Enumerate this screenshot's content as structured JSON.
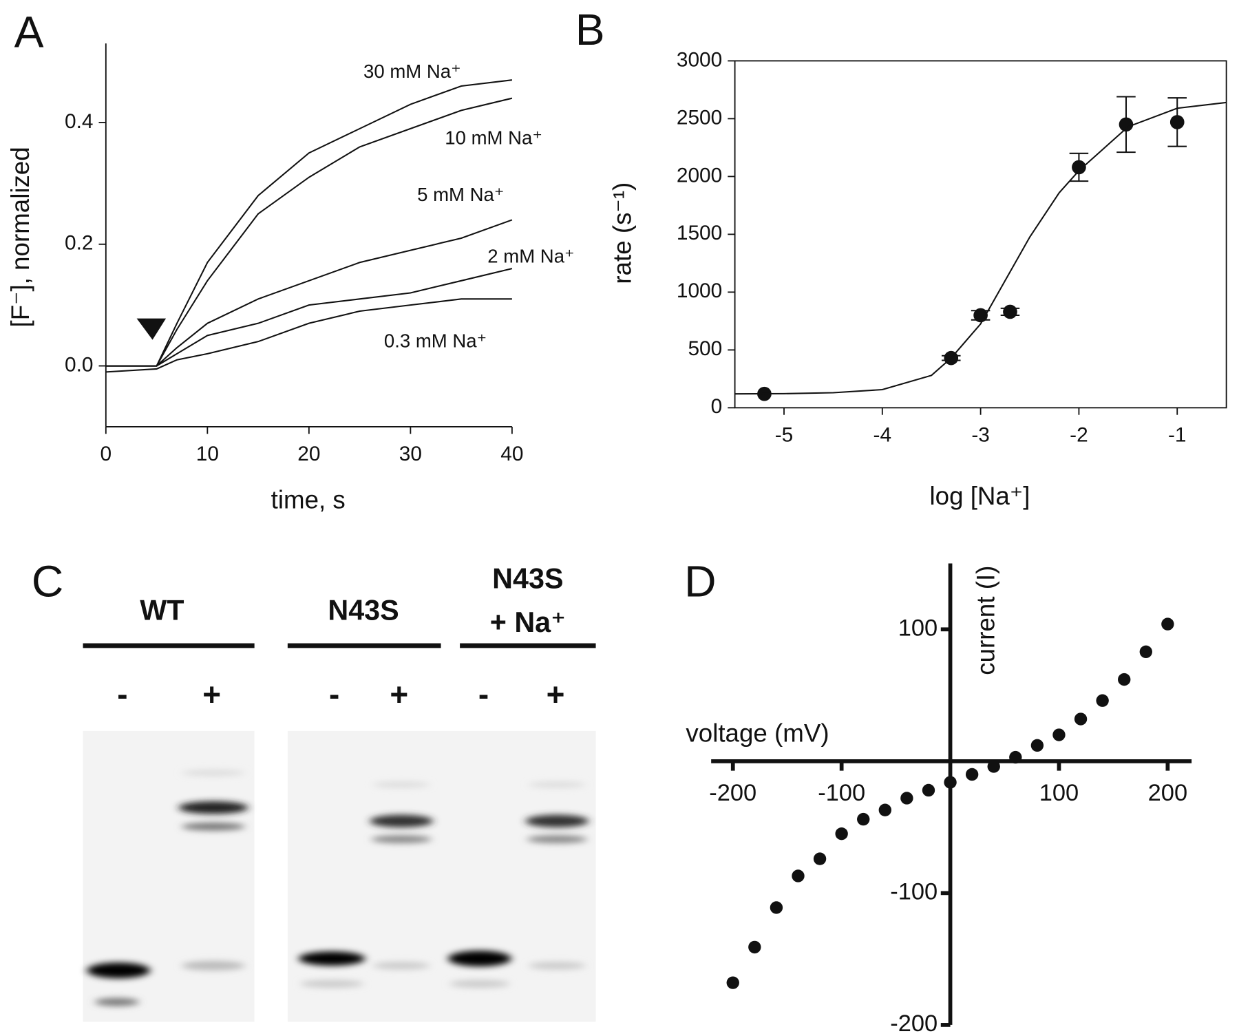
{
  "chart_data": [
    {
      "type": "line",
      "panel": "A",
      "axes": "left-bottom",
      "x_label": "time, s",
      "y_label": "[F⁻], normalized",
      "xlim": [
        0,
        40
      ],
      "ylim": [
        -0.1,
        0.53
      ],
      "xticks": [
        0,
        10,
        20,
        30,
        40
      ],
      "yticks": [
        {
          "value": 0,
          "label": "0.0"
        },
        {
          "value": 0.2,
          "label": "0.2"
        },
        {
          "value": 0.4,
          "label": "0.4"
        }
      ],
      "x": [
        0,
        5,
        7,
        10,
        15,
        20,
        25,
        30,
        35,
        40
      ],
      "series": [
        {
          "name": "30 mM Na⁺",
          "color": "#111111",
          "values": [
            0,
            0,
            0.07,
            0.17,
            0.28,
            0.35,
            0.39,
            0.43,
            0.46,
            0.47
          ]
        },
        {
          "name": "10 mM Na⁺",
          "color": "#111111",
          "values": [
            0,
            0,
            0.06,
            0.14,
            0.25,
            0.31,
            0.36,
            0.39,
            0.42,
            0.44
          ]
        },
        {
          "name": "5 mM Na⁺",
          "color": "#111111",
          "values": [
            0,
            0,
            0.03,
            0.07,
            0.11,
            0.14,
            0.17,
            0.19,
            0.21,
            0.24
          ]
        },
        {
          "name": "2 mM Na⁺",
          "color": "#111111",
          "values": [
            0,
            0,
            0.02,
            0.05,
            0.07,
            0.1,
            0.11,
            0.12,
            0.14,
            0.16
          ]
        },
        {
          "name": "0.3 mM Na⁺",
          "color": "#111111",
          "values": [
            -0.01,
            -0.005,
            0.01,
            0.02,
            0.04,
            0.07,
            0.09,
            0.1,
            0.11,
            0.11
          ]
        }
      ]
    },
    {
      "type": "scatter",
      "panel": "B",
      "axes": "box",
      "x_label": "log [Na⁺]",
      "y_label": "rate (s⁻¹)",
      "xlim": [
        -5.5,
        -0.5
      ],
      "ylim": [
        0,
        3000
      ],
      "xticks": [
        -5,
        -4,
        -3,
        -2,
        -1
      ],
      "yticks": [
        0,
        500,
        1000,
        1500,
        2000,
        2500,
        3000
      ],
      "series": [
        {
          "type": "scatter",
          "color": "#111111",
          "x": [
            -5.2,
            -3.3,
            -3,
            -2.7,
            -2,
            -1.52,
            -1
          ],
          "values": [
            120,
            430,
            800,
            830,
            2080,
            2450,
            2470
          ],
          "yerr": [
            0,
            20,
            40,
            30,
            120,
            240,
            210
          ]
        },
        {
          "type": "line",
          "color": "#111111",
          "x": [
            -5.5,
            -5,
            -4.5,
            -4,
            -3.5,
            -3.3,
            -3,
            -2.5,
            -2.2,
            -2,
            -1.5,
            -1,
            -0.5
          ],
          "values": [
            120,
            122,
            130,
            157,
            280,
            430,
            725,
            1476,
            1860,
            2050,
            2430,
            2590,
            2640
          ]
        }
      ]
    },
    {
      "type": "scatter",
      "panel": "D",
      "axes": "crossing",
      "x_label": "voltage (mV)",
      "y_label": "current (I)",
      "xlim": [
        -220,
        222
      ],
      "ylim": [
        -200,
        150
      ],
      "xticks": [
        -200,
        -100,
        100,
        200
      ],
      "yticks": [
        100,
        -100,
        -200
      ],
      "series": [
        {
          "type": "scatter",
          "color": "#111111",
          "x": [
            -200,
            -180,
            -160,
            -140,
            -120,
            -100,
            -80,
            -60,
            -40,
            -20,
            0,
            20,
            40,
            60,
            80,
            100,
            120,
            140,
            160,
            180,
            200
          ],
          "values": [
            -168,
            -141,
            -111,
            -87,
            -74,
            -55,
            -44,
            -37,
            -28,
            -22,
            -16,
            -10,
            -4,
            3,
            12,
            20,
            32,
            46,
            62,
            83,
            104
          ]
        }
      ]
    }
  ],
  "gel": {
    "panel": "C",
    "groups": [
      {
        "label": [
          "WT"
        ],
        "lanes": [
          "-",
          "+"
        ]
      },
      {
        "label": [
          "N43S"
        ],
        "lanes": [
          "-",
          "+"
        ]
      },
      {
        "label": [
          "N43S",
          "+ Na⁺"
        ],
        "lanes": [
          "-",
          "+"
        ]
      }
    ]
  }
}
